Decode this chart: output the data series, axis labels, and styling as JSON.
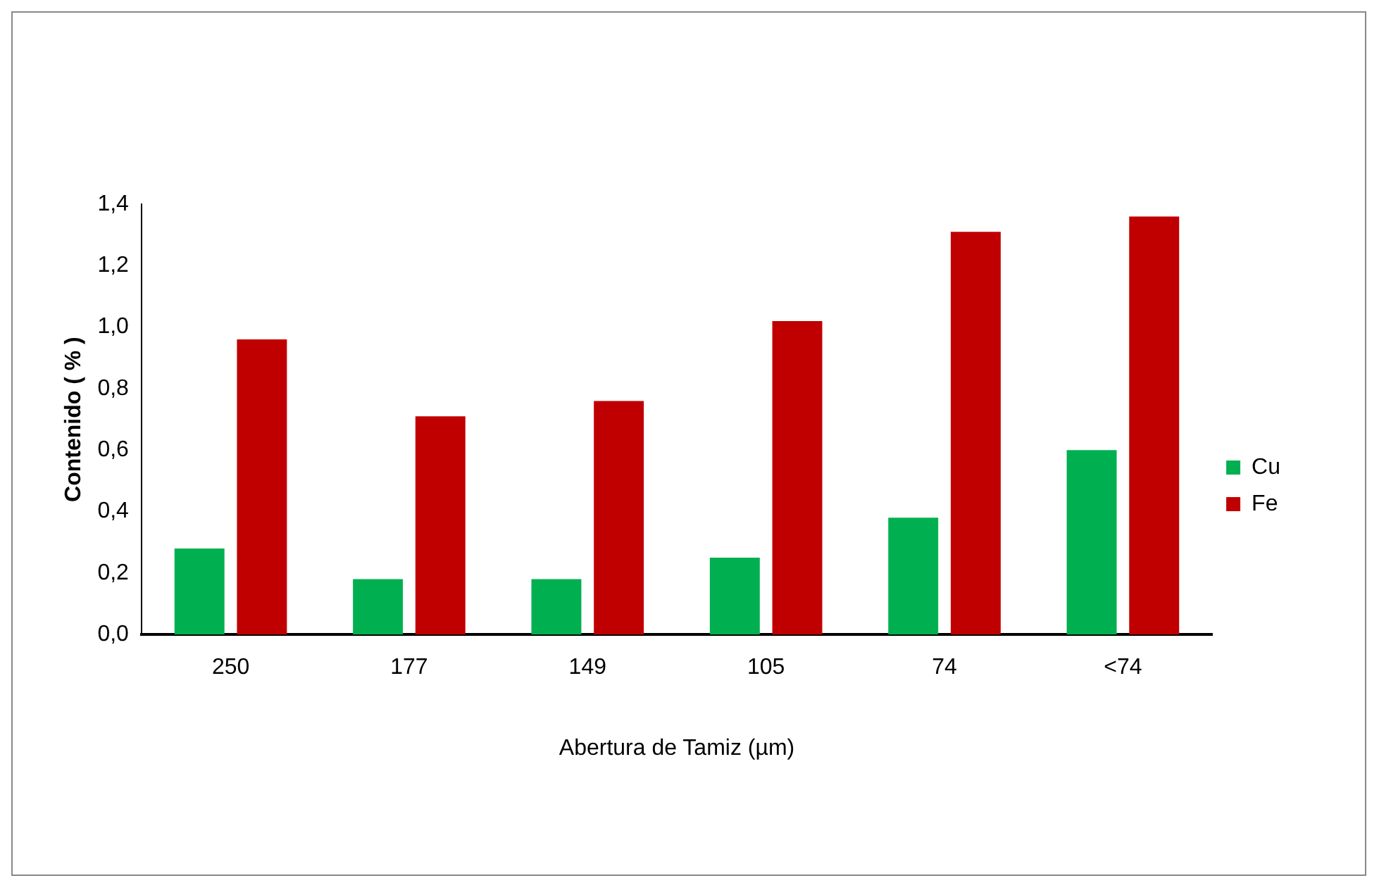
{
  "chart_data": {
    "type": "bar",
    "xlabel": "Abertura de Tamiz (µm)",
    "ylabel": "Contenido ( % )",
    "categories": [
      "250",
      "177",
      "149",
      "105",
      "74",
      "<74"
    ],
    "series": [
      {
        "name": "Cu",
        "color": "#00b050",
        "values": [
          0.28,
          0.18,
          0.18,
          0.25,
          0.38,
          0.6
        ]
      },
      {
        "name": "Fe",
        "color": "#c00000",
        "values": [
          0.96,
          0.71,
          0.76,
          1.02,
          1.31,
          1.36
        ]
      }
    ],
    "ylim": [
      0,
      1.4
    ],
    "yticks": [
      {
        "value": 0,
        "label": "0,0"
      },
      {
        "value": 0.2,
        "label": "0,2"
      },
      {
        "value": 0.4,
        "label": "0,4"
      },
      {
        "value": 0.6,
        "label": "0,6"
      },
      {
        "value": 0.8,
        "label": "0,8"
      },
      {
        "value": 1,
        "label": "1,0"
      },
      {
        "value": 1.2,
        "label": "1,2"
      },
      {
        "value": 1.4,
        "label": "1,4"
      }
    ],
    "grid": false,
    "legend": "right"
  }
}
